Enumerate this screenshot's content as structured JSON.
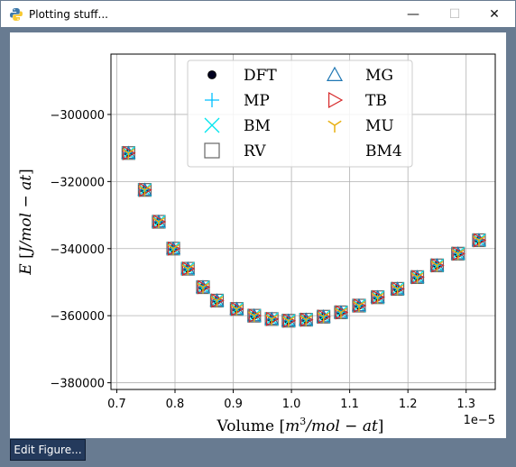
{
  "window": {
    "title": "Plotting stuff...",
    "minimize_glyph": "—",
    "maximize_glyph": "☐",
    "close_glyph": "✕",
    "app_icon": "python-logo-icon"
  },
  "toolbar": {
    "edit_figure_label": "Edit Figure..."
  },
  "chart_data": {
    "type": "scatter",
    "xlabel": "Volume [m³/mol-at]",
    "ylabel": "E [J/mol-at]",
    "x_offset_label": "1e−5",
    "xlim": [
      0.69,
      1.35
    ],
    "ylim": [
      -382000,
      -282000
    ],
    "x_ticks": [
      0.7,
      0.8,
      0.9,
      1.0,
      1.1,
      1.2,
      1.3
    ],
    "x_tick_labels": [
      "0.7",
      "0.8",
      "0.9",
      "1.0",
      "1.1",
      "1.2",
      "1.3"
    ],
    "y_ticks": [
      -300000,
      -320000,
      -340000,
      -360000,
      -380000
    ],
    "y_tick_labels": [
      "−300000",
      "−320000",
      "−340000",
      "−360000",
      "−380000"
    ],
    "grid": true,
    "legend_position": "top-center",
    "x": [
      0.72,
      0.748,
      0.772,
      0.797,
      0.822,
      0.848,
      0.872,
      0.906,
      0.936,
      0.966,
      0.995,
      1.025,
      1.055,
      1.085,
      1.116,
      1.148,
      1.182,
      1.216,
      1.25,
      1.286,
      1.322
    ],
    "y": [
      -311500,
      -322500,
      -332000,
      -340000,
      -346000,
      -351500,
      -355500,
      -358000,
      -360000,
      -361000,
      -361500,
      -361200,
      -360300,
      -359000,
      -357000,
      -354500,
      -352000,
      -348500,
      -345000,
      -341500,
      -337500
    ],
    "series": [
      {
        "name": "DFT",
        "marker": "circle-filled",
        "color": "#000000"
      },
      {
        "name": "MP",
        "marker": "plus",
        "color": "#00bfff"
      },
      {
        "name": "BM",
        "marker": "x",
        "color": "#00e5ee"
      },
      {
        "name": "RV",
        "marker": "square-open",
        "color": "#666666"
      },
      {
        "name": "MG",
        "marker": "triangle-up-open",
        "color": "#1f77b4"
      },
      {
        "name": "TB",
        "marker": "triangle-right-open",
        "color": "#d62728"
      },
      {
        "name": "MU",
        "marker": "tri-down",
        "color": "#e8b012"
      },
      {
        "name": "BM4",
        "marker": "none",
        "color": "#000000"
      }
    ]
  }
}
